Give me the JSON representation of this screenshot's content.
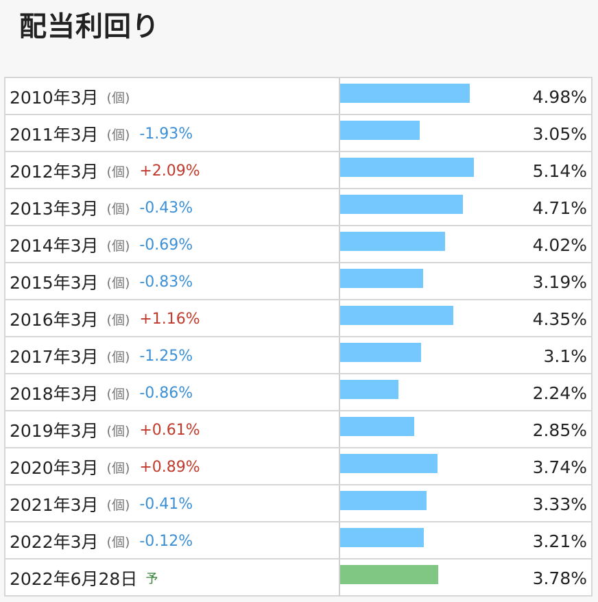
{
  "title": "配当利回り",
  "chart_data": {
    "type": "bar",
    "orientation": "horizontal",
    "title": "配当利回り",
    "xlim": [
      0,
      5.14
    ],
    "colors": {
      "actual": "#74c8fd",
      "forecast": "#80c783",
      "up": "#c0392b",
      "down": "#3b8fd6"
    },
    "rows": [
      {
        "label": "2010年3月",
        "unit": "(個)",
        "change": "",
        "value": 4.98,
        "value_label": "4.98%",
        "forecast": false
      },
      {
        "label": "2011年3月",
        "unit": "(個)",
        "change": "-1.93%",
        "value": 3.05,
        "value_label": "3.05%",
        "forecast": false
      },
      {
        "label": "2012年3月",
        "unit": "(個)",
        "change": "+2.09%",
        "value": 5.14,
        "value_label": "5.14%",
        "forecast": false
      },
      {
        "label": "2013年3月",
        "unit": "(個)",
        "change": "-0.43%",
        "value": 4.71,
        "value_label": "4.71%",
        "forecast": false
      },
      {
        "label": "2014年3月",
        "unit": "(個)",
        "change": "-0.69%",
        "value": 4.02,
        "value_label": "4.02%",
        "forecast": false
      },
      {
        "label": "2015年3月",
        "unit": "(個)",
        "change": "-0.83%",
        "value": 3.19,
        "value_label": "3.19%",
        "forecast": false
      },
      {
        "label": "2016年3月",
        "unit": "(個)",
        "change": "+1.16%",
        "value": 4.35,
        "value_label": "4.35%",
        "forecast": false
      },
      {
        "label": "2017年3月",
        "unit": "(個)",
        "change": "-1.25%",
        "value": 3.1,
        "value_label": "3.1%",
        "forecast": false
      },
      {
        "label": "2018年3月",
        "unit": "(個)",
        "change": "-0.86%",
        "value": 2.24,
        "value_label": "2.24%",
        "forecast": false
      },
      {
        "label": "2019年3月",
        "unit": "(個)",
        "change": "+0.61%",
        "value": 2.85,
        "value_label": "2.85%",
        "forecast": false
      },
      {
        "label": "2020年3月",
        "unit": "(個)",
        "change": "+0.89%",
        "value": 3.74,
        "value_label": "3.74%",
        "forecast": false
      },
      {
        "label": "2021年3月",
        "unit": "(個)",
        "change": "-0.41%",
        "value": 3.33,
        "value_label": "3.33%",
        "forecast": false
      },
      {
        "label": "2022年3月",
        "unit": "(個)",
        "change": "-0.12%",
        "value": 3.21,
        "value_label": "3.21%",
        "forecast": false
      },
      {
        "label": "2022年6月28日",
        "unit": "",
        "change": "",
        "forecast_mark": "予",
        "value": 3.78,
        "value_label": "3.78%",
        "forecast": true
      }
    ]
  }
}
